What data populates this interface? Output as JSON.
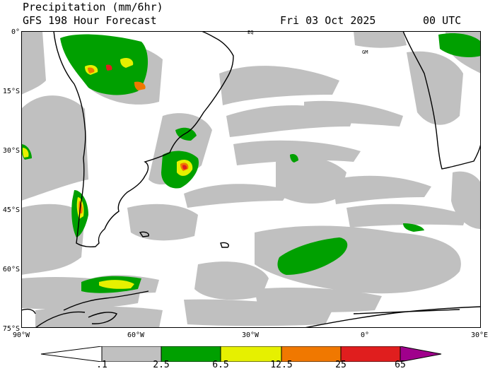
{
  "header": {
    "title": "Precipitation (mm/6hr)",
    "subtitle": "GFS 198 Hour Forecast",
    "date": "Fri 03 Oct 2025",
    "utc": "00 UTC"
  },
  "map": {
    "lat_labels": [
      "0°",
      "15°S",
      "30°S",
      "45°S",
      "60°S",
      "75°S"
    ],
    "lon_labels": [
      "90°W",
      "60°W",
      "30°W",
      "0°",
      "30°E"
    ],
    "markers": {
      "eq": "EQ",
      "gm": "GM"
    },
    "colors": {
      "ocean": "#ffffff",
      "coast": "#000000",
      "light": "#c0c0c0"
    }
  },
  "legend": {
    "ticks": [
      ".1",
      "2.5",
      "6.5",
      "12.5",
      "25",
      "65"
    ],
    "colors": [
      "#ffffff",
      "#c0c0c0",
      "#00a000",
      "#e6f000",
      "#f07800",
      "#e01e1e",
      "#a0008c"
    ]
  }
}
